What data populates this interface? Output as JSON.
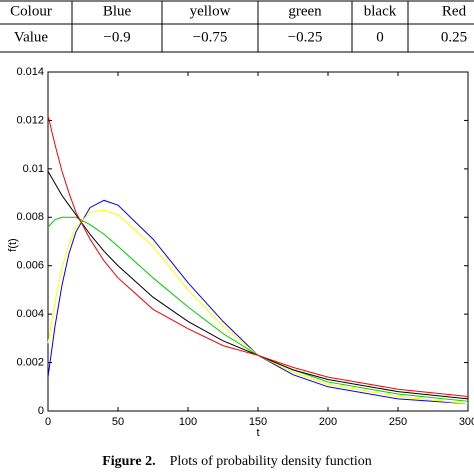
{
  "table": {
    "header": [
      "Colour",
      "Blue",
      "yellow",
      "green",
      "black",
      "Red"
    ],
    "rows": [
      [
        "Value",
        "−0.9",
        "−0.75",
        "−0.25",
        "0",
        "0.25"
      ]
    ]
  },
  "chart_data": {
    "type": "line",
    "x_label": "t",
    "y_label": "f(t)",
    "x": [
      0,
      5,
      10,
      15,
      20,
      30,
      40,
      50,
      75,
      100,
      125,
      150,
      175,
      200,
      250,
      300
    ],
    "series": [
      {
        "color": "#0000ff",
        "values": [
          0.0014,
          0.0035,
          0.0052,
          0.0065,
          0.0074,
          0.0084,
          0.0087,
          0.0085,
          0.0071,
          0.0053,
          0.0037,
          0.0023,
          0.0015,
          0.001,
          0.0005,
          0.0003
        ]
      },
      {
        "color": "#ffff00",
        "values": [
          0.0028,
          0.0045,
          0.0059,
          0.0069,
          0.0076,
          0.0082,
          0.0083,
          0.0081,
          0.0068,
          0.005,
          0.0035,
          0.0023,
          0.0016,
          0.0011,
          0.0006,
          0.0003
        ]
      },
      {
        "color": "#00cc00",
        "values": [
          0.0076,
          0.0079,
          0.008,
          0.008,
          0.008,
          0.0077,
          0.0073,
          0.0068,
          0.0055,
          0.0043,
          0.0032,
          0.0023,
          0.0017,
          0.0012,
          0.0007,
          0.0004
        ]
      },
      {
        "color": "#000000",
        "values": [
          0.0099,
          0.0094,
          0.0089,
          0.0085,
          0.0081,
          0.0073,
          0.0066,
          0.006,
          0.0047,
          0.0037,
          0.0029,
          0.0023,
          0.0017,
          0.0013,
          0.0008,
          0.0005
        ]
      },
      {
        "color": "#ff0000",
        "values": [
          0.0122,
          0.011,
          0.0099,
          0.009,
          0.0082,
          0.0071,
          0.0062,
          0.0055,
          0.0042,
          0.0034,
          0.0027,
          0.0023,
          0.0018,
          0.0014,
          0.0009,
          0.0006
        ]
      }
    ],
    "xlim": [
      0,
      300
    ],
    "xticks": [
      0,
      50,
      100,
      150,
      200,
      250,
      300
    ],
    "ylim": [
      0,
      0.014
    ],
    "yticks": [
      0,
      0.002,
      0.004,
      0.006,
      0.008,
      0.01,
      0.012,
      0.014
    ]
  },
  "caption": {
    "label": "Figure 2.",
    "text": "Plots of probability density function"
  }
}
